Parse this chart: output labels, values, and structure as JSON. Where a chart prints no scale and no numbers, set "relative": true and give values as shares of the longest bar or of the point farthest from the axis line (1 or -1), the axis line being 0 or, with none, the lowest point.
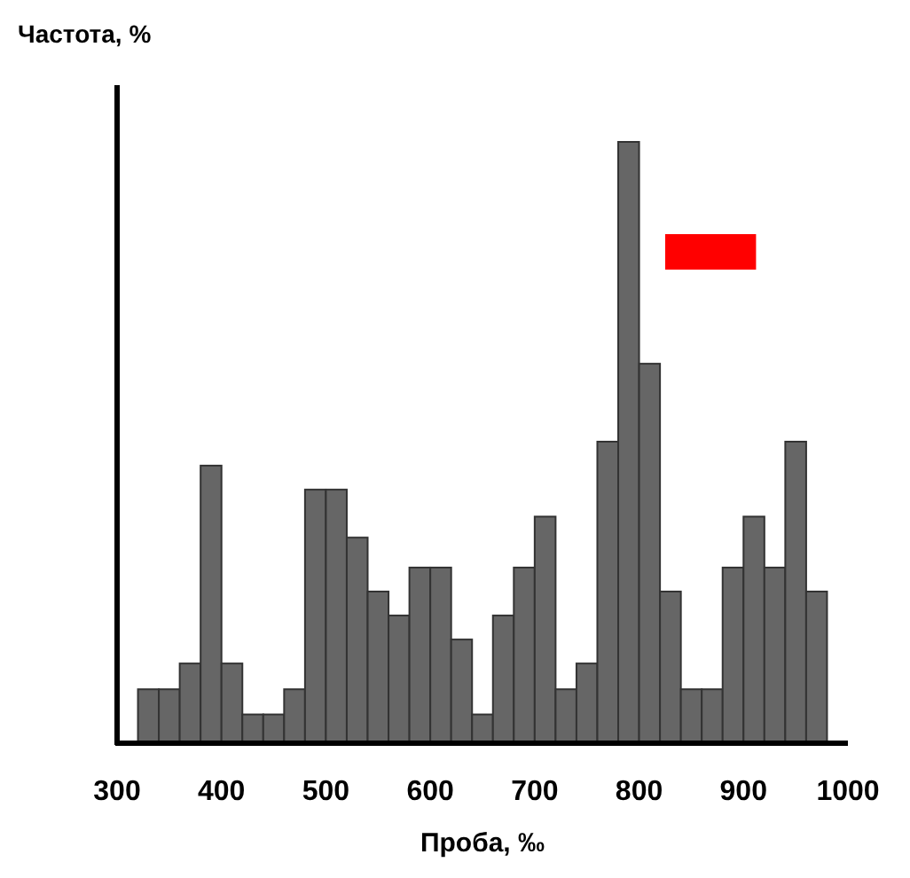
{
  "chart_data": {
    "type": "bar",
    "relative": true,
    "xlabel": "Проба, ‰",
    "ylabel": "Частота, %",
    "x": [
      330,
      350,
      370,
      390,
      410,
      430,
      450,
      470,
      490,
      510,
      530,
      550,
      570,
      590,
      610,
      630,
      650,
      670,
      690,
      710,
      730,
      750,
      770,
      790,
      810,
      830,
      850,
      870,
      890,
      910,
      930,
      950,
      970
    ],
    "values": [
      0.087,
      0.087,
      0.13,
      0.46,
      0.13,
      0.045,
      0.045,
      0.087,
      0.42,
      0.42,
      0.34,
      0.25,
      0.21,
      0.29,
      0.29,
      0.17,
      0.045,
      0.21,
      0.29,
      0.375,
      0.087,
      0.13,
      0.5,
      1,
      0.63,
      0.25,
      0.087,
      0.087,
      0.29,
      0.375,
      0.29,
      0.5,
      0.25
    ],
    "color": "#666666",
    "xlim": [
      300,
      1000
    ],
    "xticks": [
      300,
      400,
      500,
      600,
      700,
      800,
      900,
      1000
    ]
  }
}
